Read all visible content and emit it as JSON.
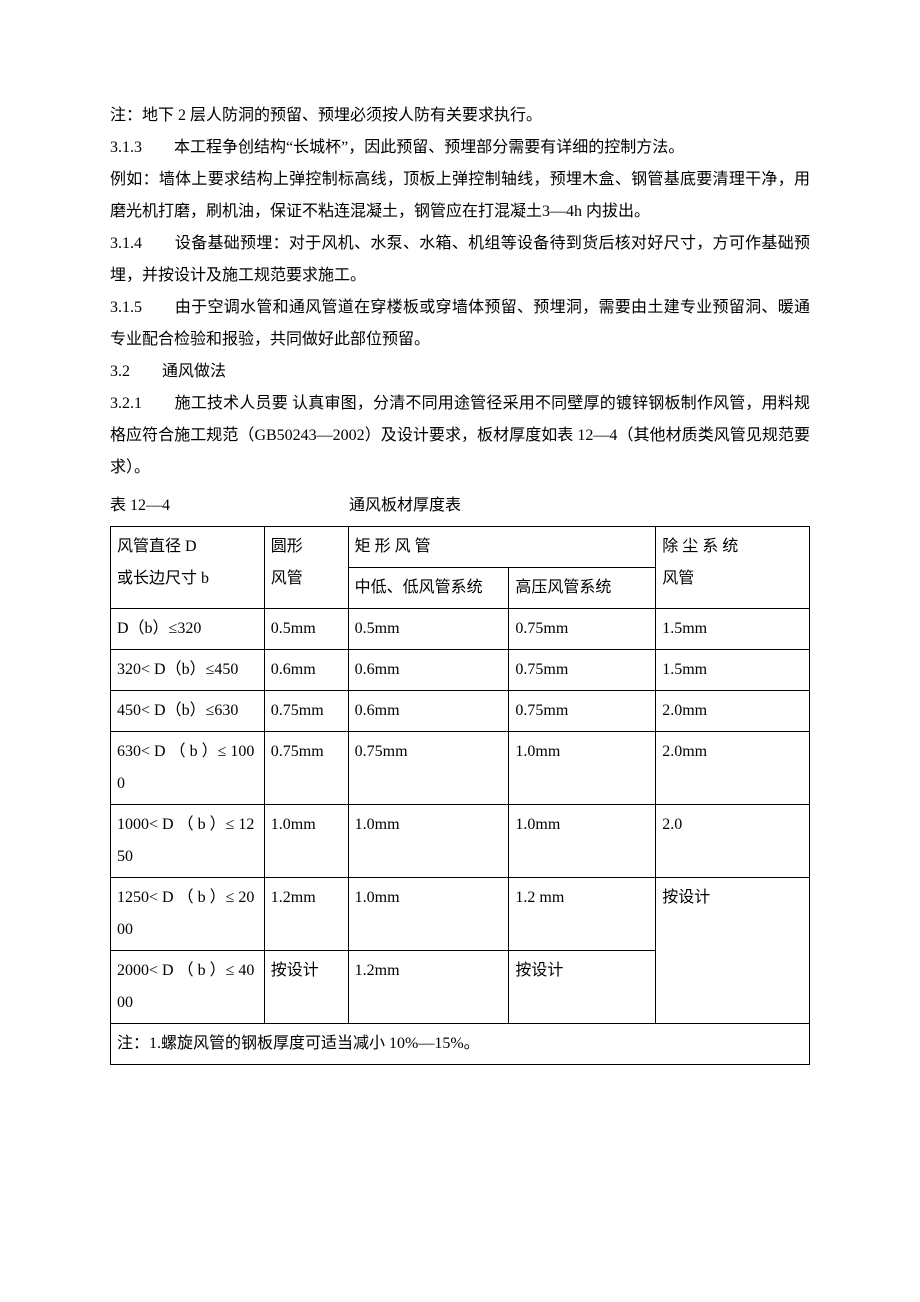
{
  "paragraphs": {
    "note1": "注：地下 2 层人防洞的预留、预埋必须按人防有关要求执行。",
    "p313": "3.1.3　　本工程争创结构“长城杯”，因此预留、预埋部分需要有详细的控制方法。",
    "p313ex": "例如：墙体上要求结构上弹控制标高线，顶板上弹控制轴线，预埋木盒、钢管基底要清理干净，用磨光机打磨，刷机油，保证不粘连混凝土，钢管应在打混凝土3—4h 内拔出。",
    "p314": "3.1.4　　设备基础预埋：对于风机、水泵、水箱、机组等设备待到货后核对好尺寸，方可作基础预埋，并按设计及施工规范要求施工。",
    "p315": "3.1.5　　由于空调水管和通风管道在穿楼板或穿墙体预留、预埋洞，需要由土建专业预留洞、暖通专业配合检验和报验，共同做好此部位预留。",
    "p32": "3.2　　通风做法",
    "p321": "3.2.1　　施工技术人员要 认真审图，分清不同用途管径采用不同壁厚的镀锌钢板制作风管，用料规格应符合施工规范（GB50243—2002）及设计要求，板材厚度如表 12—4（其他材质类风管见规范要求）。"
  },
  "table": {
    "caption_left": "表 12—4",
    "caption_center": "通风板材厚度表",
    "header": {
      "col1_l1": "风管直径 D",
      "col1_l2": "或长边尺寸 b",
      "col2_l1": "圆形",
      "col2_l2": "风管",
      "col34_top": "矩 形 风 管",
      "col3": "中低、低风管系统",
      "col4": "高压风管系统",
      "col5_l1": "除 尘 系 统",
      "col5_l2": "风管"
    },
    "rows": [
      {
        "c1": "D（b）≤320",
        "c2": "0.5mm",
        "c3": "0.5mm",
        "c4": "0.75mm",
        "c5": "1.5mm"
      },
      {
        "c1": "320< D（b）≤450",
        "c2": "0.6mm",
        "c3": "0.6mm",
        "c4": "0.75mm",
        "c5": "1.5mm"
      },
      {
        "c1": "450< D（b）≤630",
        "c2": "0.75mm",
        "c3": "0.6mm",
        "c4": "0.75mm",
        "c5": "2.0mm"
      },
      {
        "c1": "630< D （ b ）≤ 1000",
        "c2": "0.75mm",
        "c3": "0.75mm",
        "c4": "1.0mm",
        "c5": "2.0mm"
      },
      {
        "c1": "1000< D （ b ）≤ 1250",
        "c2": "1.0mm",
        "c3": "1.0mm",
        "c4": "1.0mm",
        "c5": "2.0"
      },
      {
        "c1": "1250< D （ b ）≤ 2000",
        "c2": "1.2mm",
        "c3": "1.0mm",
        "c4": "1.2 mm",
        "c5": "按设计"
      },
      {
        "c1": "2000< D （ b ）≤ 4000",
        "c2": "按设计",
        "c3": "1.2mm",
        "c4": "按设计",
        "c5": ""
      }
    ],
    "footnote": "注：1.螺旋风管的钢板厚度可适当减小 10%—15%。"
  },
  "colors": {
    "text": "#000000",
    "background": "#ffffff",
    "border": "#000000"
  },
  "typography": {
    "body_fontsize_pt": 12,
    "line_height": 2.0,
    "font_family": "SimSun"
  }
}
